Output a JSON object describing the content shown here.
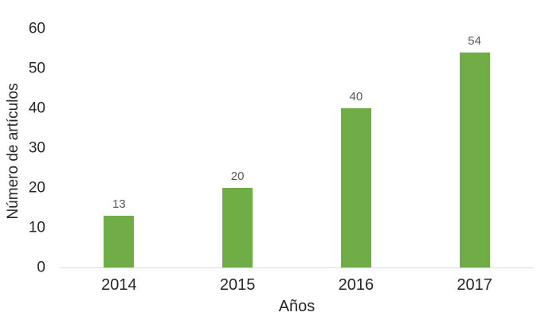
{
  "chart_data": {
    "type": "bar",
    "title": "",
    "xlabel": "Años",
    "ylabel": "Número de artículos",
    "categories": [
      "2014",
      "2015",
      "2016",
      "2017"
    ],
    "values": [
      13,
      20,
      40,
      54
    ],
    "ylim": [
      0,
      60
    ],
    "yticks": [
      0,
      10,
      20,
      30,
      40,
      50,
      60
    ],
    "grid": false,
    "legend_position": "none",
    "data_labels_shown": true,
    "colors": {
      "bar": "#70AD47",
      "data_label": "#595959",
      "axis_text": "#262626",
      "axis_line": "#D9D9D9",
      "background": "#FFFFFF"
    }
  }
}
